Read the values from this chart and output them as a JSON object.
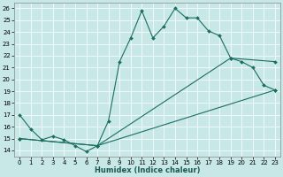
{
  "xlabel": "Humidex (Indice chaleur)",
  "bg_color": "#c8e8e8",
  "line_color": "#1a6e60",
  "xlim": [
    -0.5,
    23.5
  ],
  "ylim": [
    13.5,
    26.5
  ],
  "line1_x": [
    0,
    1,
    2,
    3,
    4,
    5,
    6,
    7,
    8,
    9,
    10,
    11,
    12,
    13,
    14,
    15,
    16,
    17,
    18,
    19,
    20,
    21,
    22,
    23
  ],
  "line1_y": [
    17.0,
    15.8,
    14.9,
    15.2,
    14.9,
    14.4,
    13.9,
    14.4,
    16.5,
    21.5,
    23.5,
    25.8,
    23.5,
    24.5,
    26.0,
    25.2,
    25.2,
    24.1,
    23.7,
    21.8,
    21.5,
    21.0,
    19.5,
    19.1
  ],
  "line2_x": [
    0,
    7,
    19,
    23
  ],
  "line2_y": [
    15.0,
    14.4,
    21.8,
    21.5
  ],
  "line3_x": [
    0,
    7,
    23
  ],
  "line3_y": [
    15.0,
    14.4,
    19.1
  ]
}
